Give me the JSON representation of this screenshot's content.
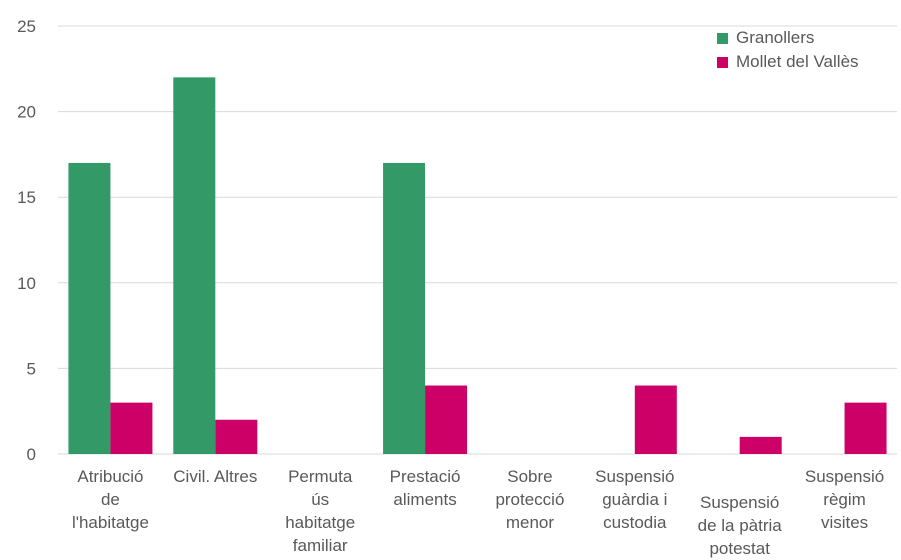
{
  "chart_data": {
    "type": "bar",
    "categories": [
      [
        "Atribució",
        "de",
        "l'habitatge"
      ],
      [
        "Civil. Altres"
      ],
      [
        "Permuta",
        "ús",
        "habitatge",
        "familiar"
      ],
      [
        "Prestació",
        "aliments"
      ],
      [
        "Sobre",
        "protecció",
        "menor"
      ],
      [
        "Suspensió",
        "guàrdia i",
        "custodia"
      ],
      [
        "Suspensió",
        "de la pàtria",
        "potestat"
      ],
      [
        "Suspensió",
        "règim",
        "visites"
      ]
    ],
    "series": [
      {
        "name": "Granollers",
        "color": "#339966",
        "values": [
          17,
          22,
          0,
          17,
          0,
          0,
          0,
          0
        ]
      },
      {
        "name": "Mollet del Vallès",
        "color": "#cc0066",
        "values": [
          3,
          2,
          0,
          4,
          0,
          4,
          1,
          3
        ]
      }
    ],
    "ylim": [
      0,
      25
    ],
    "yticks": [
      0,
      5,
      10,
      15,
      20,
      25
    ],
    "grid": true,
    "legend_position": "top-right"
  }
}
